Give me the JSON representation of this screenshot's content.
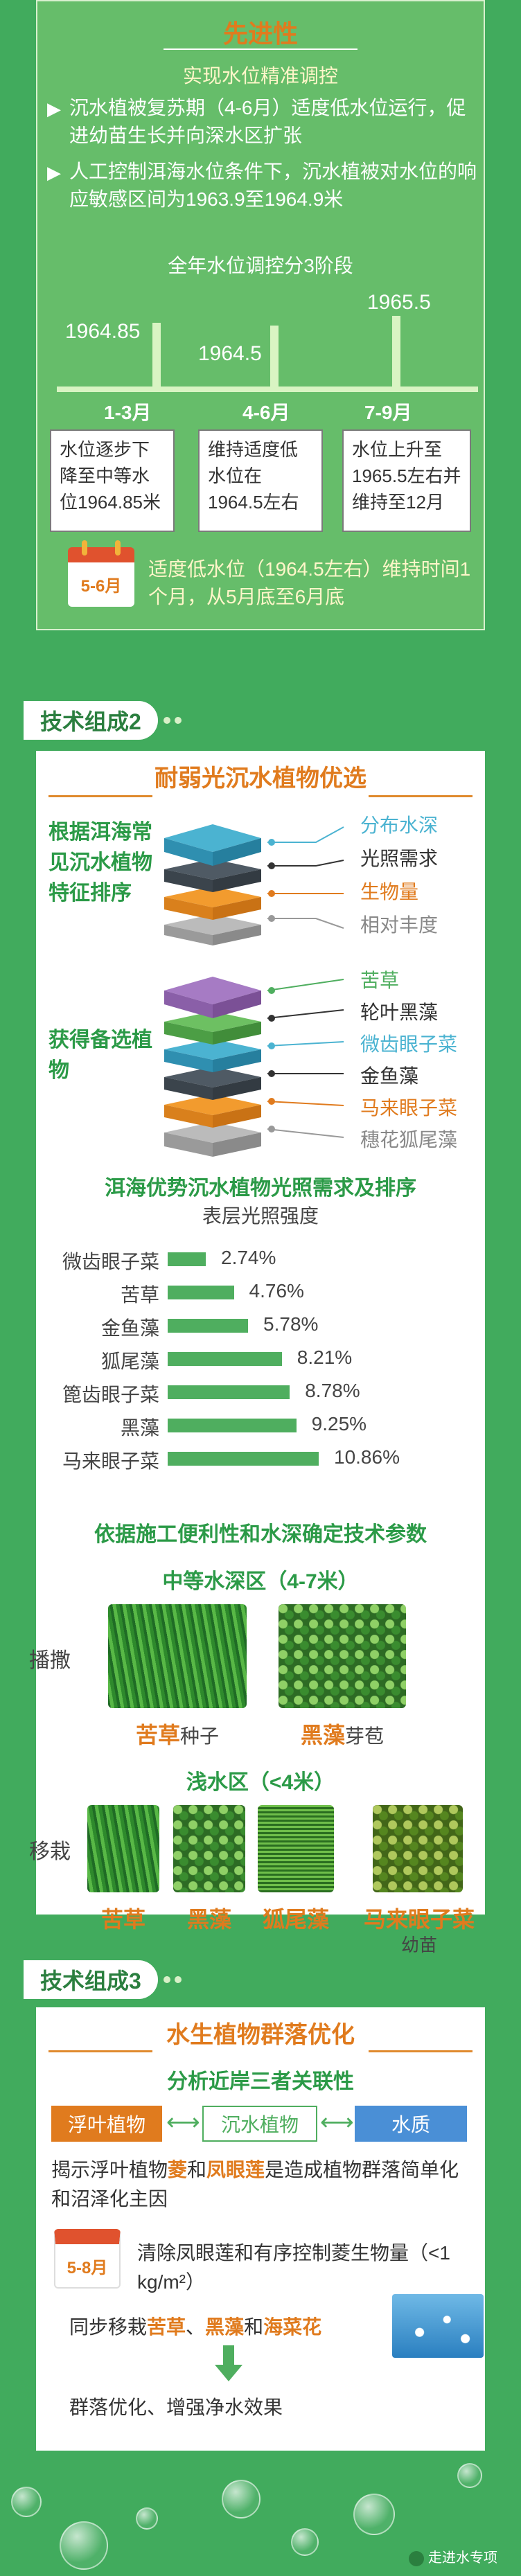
{
  "sec1": {
    "title": "先进性",
    "subtitle": "实现水位精准调控",
    "bullet1": "沉水植被复苏期（4-6月）适度低水位运行，促进幼苗生长并向深水区扩张",
    "bullet2": "人工控制洱海水位条件下，沉水植被对水位的响应敏感区间为1963.9至1964.9米",
    "stage_title": "全年水位调控分3阶段",
    "values": [
      "1964.85",
      "1964.5",
      "1965.5"
    ],
    "months": [
      "1-3月",
      "4-6月",
      "7-9月"
    ],
    "desc1": "水位逐步下降至中等水位1964.85米",
    "desc2": "维持适度低水位在1964.5左右",
    "desc3": "水位上升至1965.5左右并维持至12月",
    "calendar": "5-6月",
    "note": "适度低水位（1964.5左右）维持时间1个月，从5月底至6月底"
  },
  "sec2": {
    "badge": "技术组成2",
    "title": "耐弱光沉水植物优选",
    "left1": "根据洱海常见沉水植物特征排序",
    "right1": [
      "分布水深",
      "光照需求",
      "生物量",
      "相对丰度"
    ],
    "right1_colors": [
      "#4bb3d1",
      "#333333",
      "#e07b1e",
      "#888888"
    ],
    "left2": "获得备选植物",
    "right2": [
      "苦草",
      "轮叶黑藻",
      "微齿眼子菜",
      "金鱼藻",
      "马来眼子菜",
      "穗花狐尾藻"
    ],
    "right2_colors": [
      "#4fae5f",
      "#333333",
      "#4bb3d1",
      "#333333",
      "#e07b1e",
      "#888888"
    ],
    "chart_title": "洱海优势沉水植物光照需求及排序",
    "chart_sub": "表层光照强度",
    "section3_title": "依据施工便利性和水深确定技术参数",
    "mid_title": "中等水深区（4-7米）",
    "method1": "播撒",
    "cap1a": "苦草",
    "cap1b": "种子",
    "cap2a": "黑藻",
    "cap2b": "芽苞",
    "shallow_title": "浅水区（<4米）",
    "method2": "移栽",
    "caps2": [
      "苦草",
      "黑藻",
      "狐尾藻",
      "马来眼子菜"
    ],
    "cap_sub": "幼苗"
  },
  "chart_data": {
    "type": "bar",
    "title": "洱海优势沉水植物光照需求及排序",
    "subtitle": "表层光照强度",
    "categories": [
      "微齿眼子菜",
      "苦草",
      "金鱼藻",
      "狐尾藻",
      "篦齿眼子菜",
      "黑藻",
      "马来眼子菜"
    ],
    "values": [
      2.74,
      4.76,
      5.78,
      8.21,
      8.78,
      9.25,
      10.86
    ],
    "labels": [
      "2.74%",
      "4.76%",
      "5.78%",
      "8.21%",
      "8.78%",
      "9.25%",
      "10.86%"
    ],
    "color": "#4fae5f"
  },
  "sec3": {
    "badge": "技术组成3",
    "title": "水生植物群落优化",
    "subtitle": "分析近岸三者关联性",
    "pills": [
      "浮叶植物",
      "沉水植物",
      "水质"
    ],
    "reveal_pre": "揭示浮叶植物",
    "reveal_k1": "菱",
    "reveal_mid": "和",
    "reveal_k2": "凤眼莲",
    "reveal_post": "是造成植物群落简单化和沼泽化主因",
    "calendar": "5-8月",
    "clear_text": "清除凤眼莲和有序控制菱生物量（<1 kg/m²）",
    "sync_pre": "同步移栽",
    "sync_k1": "苦草",
    "sync_sep1": "、",
    "sync_k2": "黑藻",
    "sync_sep2": "和",
    "sync_k3": "海菜花",
    "result": "群落优化、增强净水效果",
    "watermark": "走进水专项"
  }
}
